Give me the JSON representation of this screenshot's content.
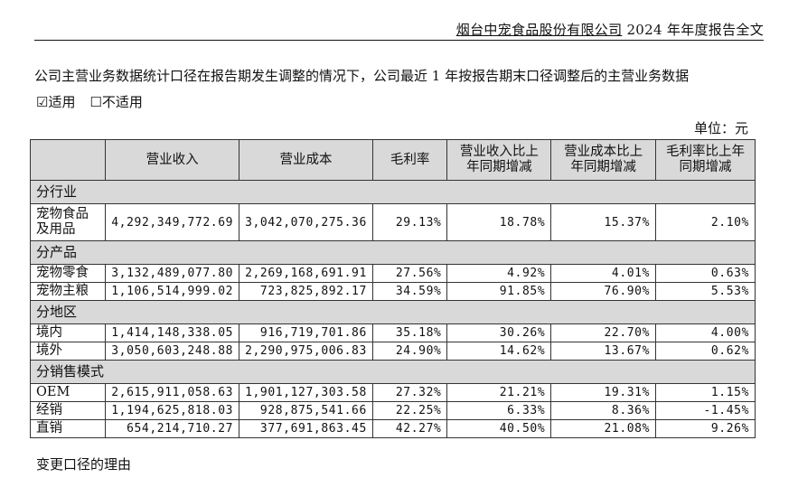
{
  "header": {
    "company": "烟台中宠食品股份有限公司",
    "report": "2024 年年度报告全文"
  },
  "intro_text": "公司主营业务数据统计口径在报告期发生调整的情况下，公司最近 1 年按报告期末口径调整后的主营业务数据",
  "options": {
    "applicable_mark": "☑",
    "applicable": "适用",
    "not_applicable_mark": "☐",
    "not_applicable": "不适用"
  },
  "unit": "单位：元",
  "table": {
    "columns": [
      "",
      "营业收入",
      "营业成本",
      "毛利率",
      "营业收入比上年同期增减",
      "营业成本比上年同期增减",
      "毛利率比上年同期增减"
    ],
    "columns_display": [
      "",
      "营业收入",
      "营业成本",
      "毛利率",
      "营业收入比上\n年同期增减",
      "营业成本比上\n年同期增减",
      "毛利率比上年\n同期增减"
    ],
    "sections": [
      {
        "title": "分行业",
        "rows": [
          {
            "label": "宠物食品及用品",
            "label_display": "宠物食品\n及用品",
            "revenue": "4,292,349,772.69",
            "cost": "3,042,070,275.36",
            "margin": "29.13%",
            "rev_change": "18.78%",
            "cost_change": "15.37%",
            "margin_change": "2.10%"
          }
        ]
      },
      {
        "title": "分产品",
        "rows": [
          {
            "label": "宠物零食",
            "revenue": "3,132,489,077.80",
            "cost": "2,269,168,691.91",
            "margin": "27.56%",
            "rev_change": "4.92%",
            "cost_change": "4.01%",
            "margin_change": "0.63%"
          },
          {
            "label": "宠物主粮",
            "revenue": "1,106,514,999.02",
            "cost": "723,825,892.17",
            "margin": "34.59%",
            "rev_change": "91.85%",
            "cost_change": "76.90%",
            "margin_change": "5.53%"
          }
        ]
      },
      {
        "title": "分地区",
        "rows": [
          {
            "label": "境内",
            "revenue": "1,414,148,338.05",
            "cost": "916,719,701.86",
            "margin": "35.18%",
            "rev_change": "30.26%",
            "cost_change": "22.70%",
            "margin_change": "4.00%"
          },
          {
            "label": "境外",
            "revenue": "3,050,603,248.88",
            "cost": "2,290,975,006.83",
            "margin": "24.90%",
            "rev_change": "14.62%",
            "cost_change": "13.67%",
            "margin_change": "0.62%"
          }
        ]
      },
      {
        "title": "分销售模式",
        "rows": [
          {
            "label": "OEM",
            "revenue": "2,615,911,058.63",
            "cost": "1,901,127,303.58",
            "margin": "27.32%",
            "rev_change": "21.21%",
            "cost_change": "19.31%",
            "margin_change": "1.15%"
          },
          {
            "label": "经销",
            "revenue": "1,194,625,818.03",
            "cost": "928,875,541.66",
            "margin": "22.25%",
            "rev_change": "6.33%",
            "cost_change": "8.36%",
            "margin_change": "-1.45%"
          },
          {
            "label": "直销",
            "revenue": "654,214,710.27",
            "cost": "377,691,863.45",
            "margin": "42.27%",
            "rev_change": "40.50%",
            "cost_change": "21.08%",
            "margin_change": "9.26%"
          }
        ]
      }
    ]
  },
  "footer_text": "变更口径的理由"
}
